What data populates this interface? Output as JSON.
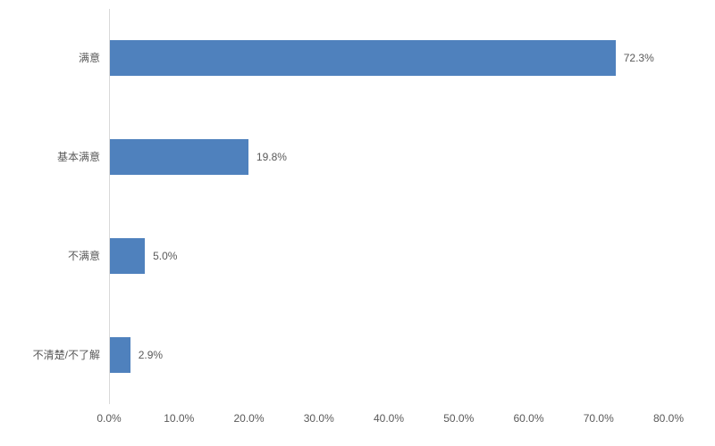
{
  "chart_data": {
    "type": "bar",
    "orientation": "horizontal",
    "title": "",
    "xlabel": "",
    "ylabel": "",
    "categories": [
      "满意",
      "基本满意",
      "不满意",
      "不清楚/不了解"
    ],
    "values": [
      72.3,
      19.8,
      5.0,
      2.9
    ],
    "value_labels": [
      "72.3%",
      "19.8%",
      "5.0%",
      "2.9%"
    ],
    "xlim": [
      0,
      80
    ],
    "x_tick_values": [
      0,
      10,
      20,
      30,
      40,
      50,
      60,
      70,
      80
    ],
    "x_tick_labels": [
      "0.0%",
      "10.0%",
      "20.0%",
      "30.0%",
      "40.0%",
      "50.0%",
      "60.0%",
      "70.0%",
      "80.0%"
    ],
    "grid": false,
    "legend": false,
    "colors": {
      "bar": "#4F81BD",
      "axis_line": "#D9D9D9",
      "text": "#595959"
    }
  }
}
